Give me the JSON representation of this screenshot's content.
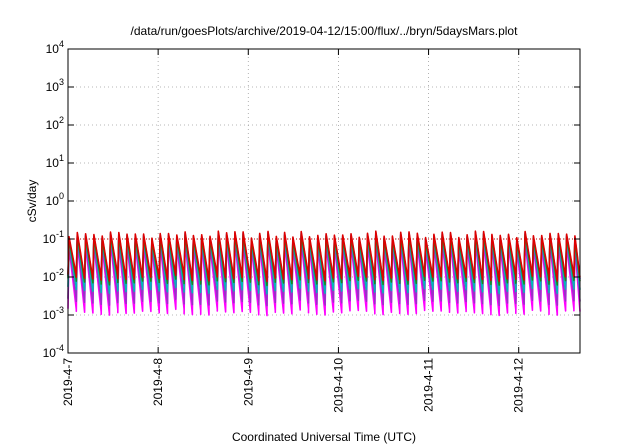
{
  "chart_data": {
    "type": "line",
    "title": "/data/run/goesPlots/archive/2019-04-12/15:00/flux/../bryn/5daysMars.plot",
    "xlabel": "Coordinated Universal Time (UTC)",
    "ylabel": "cSv/day",
    "y_scale": "log",
    "ylim": [
      0.0001,
      10000
    ],
    "y_ticks": [
      {
        "value": 0.0001,
        "base": "10",
        "exp": "-4"
      },
      {
        "value": 0.001,
        "base": "10",
        "exp": "-3"
      },
      {
        "value": 0.01,
        "base": "10",
        "exp": "-2"
      },
      {
        "value": 0.1,
        "base": "10",
        "exp": "-1"
      },
      {
        "value": 1,
        "base": "10",
        "exp": "0"
      },
      {
        "value": 10,
        "base": "10",
        "exp": "1"
      },
      {
        "value": 100,
        "base": "10",
        "exp": "2"
      },
      {
        "value": 1000,
        "base": "10",
        "exp": "3"
      },
      {
        "value": 10000,
        "base": "10",
        "exp": "4"
      }
    ],
    "x_ticks": [
      "2019-4-7",
      "2019-4-8",
      "2019-4-9",
      "2019-4-10",
      "2019-4-11",
      "2019-4-12"
    ],
    "xlim_days": [
      0,
      5.68
    ],
    "grid": true,
    "reference_line": {
      "value": 0.1,
      "color": "#cc0000",
      "style": "dotted"
    },
    "sawtooth_period_days": 0.092,
    "series": [
      {
        "color": "#ff00ff",
        "peak": 0.07,
        "trough": 0.0012
      },
      {
        "color": "#9b30c8",
        "peak": 0.085,
        "trough": 0.0022
      },
      {
        "color": "#00b8b8",
        "peak": 0.1,
        "trough": 0.0045
      },
      {
        "color": "#2233dd",
        "peak": 0.12,
        "trough": 0.0085
      },
      {
        "color": "#1a8c1a",
        "peak": 0.11,
        "trough": 0.0075
      },
      {
        "color": "#dd0000",
        "peak": 0.13,
        "trough": 0.0095
      }
    ]
  }
}
